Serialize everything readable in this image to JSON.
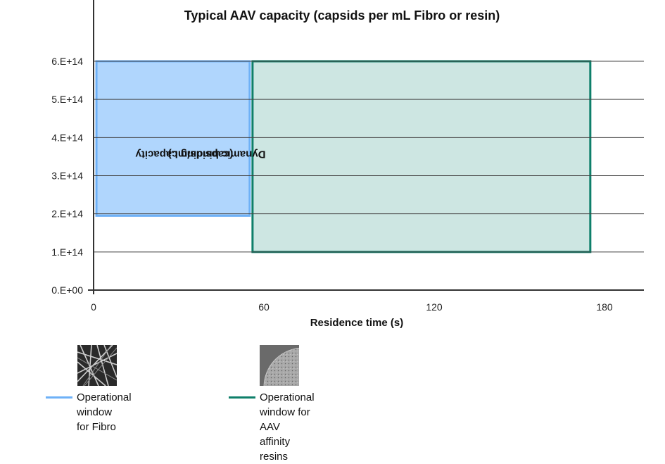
{
  "chart_data": {
    "type": "area",
    "title": "Typical AAV capacity (capsids per mL Fibro or resin)",
    "xlabel": "Residence time (s)",
    "ylabel": "Dynamic binding capacity (capsids/mL)",
    "ylabel_lines": [
      "Dynamic binding capacity",
      "(capsids/mL)"
    ],
    "xlim": [
      0,
      194
    ],
    "ylim": [
      0,
      630000000000000.0
    ],
    "x_ticks": [
      0,
      60,
      120,
      180
    ],
    "x_tick_labels": [
      "0",
      "60",
      "120",
      "180"
    ],
    "y_ticks": [
      0,
      100000000000000.0,
      200000000000000.0,
      300000000000000.0,
      400000000000000.0,
      500000000000000.0,
      600000000000000.0
    ],
    "y_tick_labels": [
      "0.E+00",
      "1.E+14",
      "2.E+14",
      "3.E+14",
      "4.E+14",
      "5.E+14",
      "6.E+14"
    ],
    "grid": "horizontal",
    "series": [
      {
        "name": "Operational window for Fibro",
        "shape": "rectangle",
        "x_range": [
          1,
          55
        ],
        "y_range": [
          195000000000000.0,
          600000000000000.0
        ],
        "fill": "#b0d6fd",
        "stroke": "#6eb1f7"
      },
      {
        "name": "Operational window for AAV affinity resins",
        "shape": "rectangle",
        "x_range": [
          56,
          175
        ],
        "y_range": [
          100000000000000.0,
          600000000000000.0
        ],
        "fill": "#cde6e2",
        "stroke": "#0e7f6a"
      }
    ],
    "legend_position": "bottom-left"
  },
  "legend": [
    {
      "label": "Operational window\nfor Fibro",
      "color": "#6eb1f7",
      "thumb": "fibro-fiber-micrograph"
    },
    {
      "label": "Operational window for AAV\naffinity resins",
      "color": "#0e7f6a",
      "thumb": "resin-bead-micrograph"
    }
  ]
}
